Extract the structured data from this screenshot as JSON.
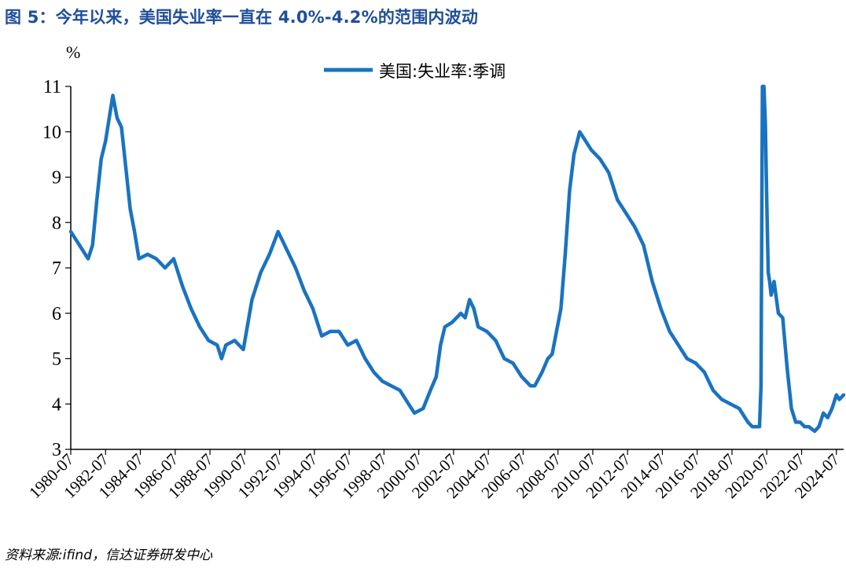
{
  "figure": {
    "title": "图 5：今年以来，美国失业率一直在 4.0%-4.2%的范围内波动",
    "source": "资料来源:ifind，信达证券研发中心"
  },
  "colors": {
    "line": "#1a73c0",
    "title": "#1f4e9a"
  },
  "chart_data": {
    "type": "line",
    "title": "",
    "xlabel": "",
    "ylabel": "%",
    "ylim": [
      3,
      11
    ],
    "yticks": [
      3,
      4,
      5,
      6,
      7,
      8,
      9,
      10,
      11
    ],
    "xlim": [
      "1980-07",
      "2024-12"
    ],
    "xticks": [
      "1980-07",
      "1982-07",
      "1984-07",
      "1986-07",
      "1988-07",
      "1990-07",
      "1992-07",
      "1994-07",
      "1996-07",
      "1998-07",
      "2000-07",
      "2002-07",
      "2004-07",
      "2006-07",
      "2008-07",
      "2010-07",
      "2012-07",
      "2014-07",
      "2016-07",
      "2018-07",
      "2020-07",
      "2022-07",
      "2024-07"
    ],
    "legend": "top-center",
    "grid": false,
    "series": [
      {
        "name": "美国:失业率:季调",
        "x": [
          "1980-07",
          "1981-01",
          "1981-07",
          "1981-10",
          "1982-01",
          "1982-04",
          "1982-07",
          "1982-10",
          "1982-12",
          "1983-03",
          "1983-06",
          "1983-09",
          "1983-12",
          "1984-03",
          "1984-06",
          "1984-12",
          "1985-06",
          "1985-12",
          "1986-06",
          "1986-12",
          "1987-06",
          "1987-12",
          "1988-06",
          "1988-12",
          "1989-03",
          "1989-06",
          "1989-12",
          "1990-06",
          "1990-12",
          "1991-06",
          "1991-12",
          "1992-06",
          "1992-09",
          "1992-12",
          "1993-06",
          "1993-12",
          "1994-06",
          "1994-12",
          "1995-06",
          "1995-12",
          "1996-06",
          "1996-12",
          "1997-06",
          "1997-12",
          "1998-06",
          "1998-12",
          "1999-06",
          "1999-12",
          "2000-04",
          "2000-10",
          "2001-03",
          "2001-07",
          "2001-10",
          "2002-01",
          "2002-06",
          "2002-12",
          "2003-03",
          "2003-06",
          "2003-09",
          "2003-12",
          "2004-06",
          "2004-12",
          "2005-06",
          "2005-12",
          "2006-06",
          "2006-12",
          "2007-03",
          "2007-08",
          "2007-12",
          "2008-03",
          "2008-06",
          "2008-09",
          "2008-12",
          "2009-03",
          "2009-06",
          "2009-10",
          "2009-12",
          "2010-06",
          "2010-12",
          "2011-06",
          "2011-12",
          "2012-06",
          "2012-12",
          "2013-06",
          "2013-12",
          "2014-06",
          "2014-12",
          "2015-06",
          "2015-12",
          "2016-06",
          "2016-12",
          "2017-06",
          "2017-12",
          "2018-06",
          "2018-12",
          "2019-06",
          "2019-09",
          "2020-01",
          "2020-02",
          "2020-03",
          "2020-04",
          "2020-05",
          "2020-06",
          "2020-07",
          "2020-08",
          "2020-09",
          "2020-10",
          "2020-12",
          "2021-03",
          "2021-06",
          "2021-09",
          "2021-12",
          "2022-03",
          "2022-06",
          "2022-09",
          "2022-12",
          "2023-04",
          "2023-07",
          "2023-10",
          "2024-01",
          "2024-04",
          "2024-07",
          "2024-09",
          "2024-12"
        ],
        "values": [
          7.8,
          7.5,
          7.2,
          7.5,
          8.5,
          9.4,
          9.8,
          10.4,
          10.8,
          10.3,
          10.1,
          9.2,
          8.3,
          7.8,
          7.2,
          7.3,
          7.2,
          7.0,
          7.2,
          6.6,
          6.1,
          5.7,
          5.4,
          5.3,
          5.0,
          5.3,
          5.4,
          5.2,
          6.3,
          6.9,
          7.3,
          7.8,
          7.6,
          7.4,
          7.0,
          6.5,
          6.1,
          5.5,
          5.6,
          5.6,
          5.3,
          5.4,
          5.0,
          4.7,
          4.5,
          4.4,
          4.3,
          4.0,
          3.8,
          3.9,
          4.3,
          4.6,
          5.3,
          5.7,
          5.8,
          6.0,
          5.9,
          6.3,
          6.1,
          5.7,
          5.6,
          5.4,
          5.0,
          4.9,
          4.6,
          4.4,
          4.4,
          4.7,
          5.0,
          5.1,
          5.6,
          6.1,
          7.3,
          8.7,
          9.5,
          10.0,
          9.9,
          9.6,
          9.4,
          9.1,
          8.5,
          8.2,
          7.9,
          7.5,
          6.7,
          6.1,
          5.6,
          5.3,
          5.0,
          4.9,
          4.7,
          4.3,
          4.1,
          4.0,
          3.9,
          3.6,
          3.5,
          3.5,
          3.5,
          4.4,
          11.0,
          11.0,
          10.2,
          8.4,
          6.9,
          6.7,
          6.4,
          6.7,
          6.0,
          5.9,
          4.8,
          3.9,
          3.6,
          3.6,
          3.5,
          3.5,
          3.4,
          3.5,
          3.8,
          3.7,
          3.9,
          4.2,
          4.1,
          4.2
        ]
      }
    ]
  }
}
